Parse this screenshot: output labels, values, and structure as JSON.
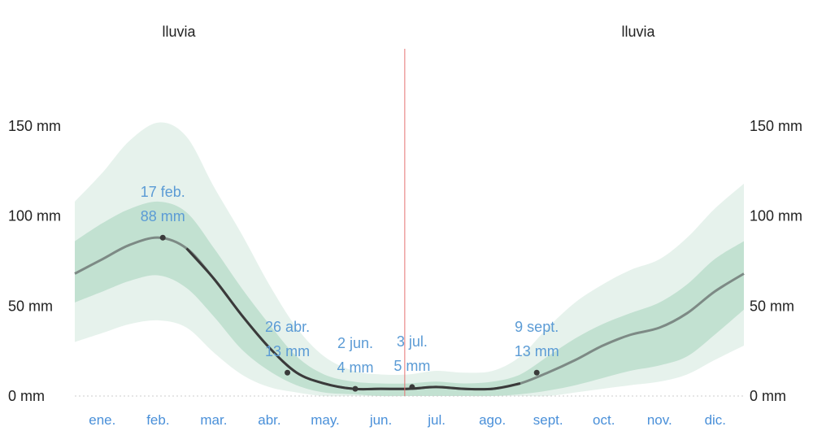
{
  "chart_data": {
    "type": "area",
    "series_title_left": "lluvia",
    "series_title_right": "lluvia",
    "ylim": [
      0,
      175
    ],
    "y_ticks": [
      {
        "value": 0,
        "label": "0 mm"
      },
      {
        "value": 50,
        "label": "50 mm"
      },
      {
        "value": 100,
        "label": "100 mm"
      },
      {
        "value": 150,
        "label": "150 mm"
      }
    ],
    "months": [
      "ene.",
      "feb.",
      "mar.",
      "abr.",
      "may.",
      "jun.",
      "jul.",
      "ago.",
      "sept.",
      "oct.",
      "nov.",
      "dic."
    ],
    "x_day_of_year": [
      0,
      15,
      30,
      46,
      61,
      76,
      91,
      106,
      121,
      136,
      152,
      167,
      182,
      197,
      212,
      228,
      243,
      258,
      273,
      288,
      303,
      319,
      334,
      349,
      365
    ],
    "series": [
      {
        "values": [
          68,
          76,
          84,
          88,
          82,
          65,
          45,
          27,
          13,
          7,
          4,
          4,
          4,
          5,
          4,
          4,
          7,
          13,
          20,
          28,
          34,
          38,
          46,
          58,
          68
        ],
        "band_inner": [
          [
            52,
            86
          ],
          [
            58,
            96
          ],
          [
            64,
            104
          ],
          [
            67,
            108
          ],
          [
            60,
            102
          ],
          [
            44,
            82
          ],
          [
            26,
            60
          ],
          [
            14,
            40
          ],
          [
            6,
            22
          ],
          [
            2,
            12
          ],
          [
            1,
            8
          ],
          [
            0,
            7
          ],
          [
            0,
            7
          ],
          [
            0,
            8
          ],
          [
            0,
            7
          ],
          [
            0,
            8
          ],
          [
            1,
            12
          ],
          [
            3,
            22
          ],
          [
            6,
            32
          ],
          [
            10,
            40
          ],
          [
            14,
            46
          ],
          [
            17,
            52
          ],
          [
            22,
            62
          ],
          [
            34,
            76
          ],
          [
            48,
            86
          ]
        ],
        "band_outer": [
          [
            30,
            108
          ],
          [
            35,
            124
          ],
          [
            40,
            142
          ],
          [
            42,
            152
          ],
          [
            38,
            144
          ],
          [
            24,
            116
          ],
          [
            12,
            90
          ],
          [
            5,
            62
          ],
          [
            2,
            38
          ],
          [
            0,
            22
          ],
          [
            0,
            14
          ],
          [
            0,
            12
          ],
          [
            0,
            12
          ],
          [
            0,
            14
          ],
          [
            0,
            13
          ],
          [
            0,
            14
          ],
          [
            0,
            22
          ],
          [
            0,
            38
          ],
          [
            2,
            52
          ],
          [
            4,
            62
          ],
          [
            6,
            70
          ],
          [
            8,
            76
          ],
          [
            12,
            88
          ],
          [
            20,
            104
          ],
          [
            28,
            118
          ]
        ]
      }
    ],
    "today_day_of_year": 180,
    "annotations": [
      {
        "day": 48,
        "value": 88,
        "date": "17 feb.",
        "amount": "88 mm"
      },
      {
        "day": 116,
        "value": 13,
        "date": "26 abr.",
        "amount": "13 mm"
      },
      {
        "day": 153,
        "value": 4,
        "date": "2 jun.",
        "amount": "4 mm"
      },
      {
        "day": 184,
        "value": 5,
        "date": "3 jul.",
        "amount": "5 mm"
      },
      {
        "day": 252,
        "value": 13,
        "date": "9 sept.",
        "amount": "13 mm"
      }
    ],
    "colors": {
      "line": "#7d8a85",
      "line_dark": "#3a3a3a",
      "band_inner": "#b9dccb",
      "band_outer": "#e3f1ea",
      "annotation_text": "#5b9bd5",
      "month_text": "#4a90d9",
      "today_line": "#e57373"
    }
  }
}
